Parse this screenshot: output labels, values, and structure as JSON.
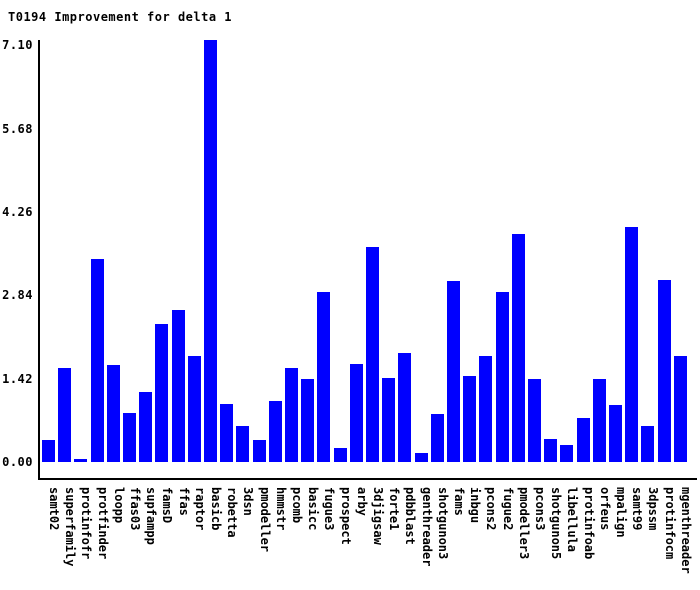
{
  "title": "T0194 Improvement for delta 1",
  "chart_data": {
    "type": "bar",
    "title": "T0194 Improvement for delta 1",
    "xlabel": "",
    "ylabel": "",
    "ylim": [
      0,
      7.1
    ],
    "ytick_labels": [
      "0.00",
      "1.42",
      "2.84",
      "4.26",
      "5.68",
      "7.10"
    ],
    "ytick_values": [
      0.0,
      1.42,
      2.84,
      4.26,
      5.68,
      7.1
    ],
    "grid": "off",
    "legend": "none",
    "x_label_rotation": 90,
    "bar_color": "#0000ff",
    "axis_color": "#000000",
    "categories": [
      "samt02",
      "superfamily",
      "protinfofr",
      "protfinder",
      "loopp",
      "ffas03",
      "supfampp",
      "famsD",
      "ffas",
      "raptor",
      "basicb",
      "robetta",
      "3dsn",
      "pmodeller",
      "hmmstr",
      "pcomb",
      "basicc",
      "fugue3",
      "prospect",
      "arby",
      "3djigsaw",
      "forte1",
      "pdbblast",
      "genthreader",
      "shotgunon3",
      "fams",
      "inbgu",
      "pcons2",
      "fugue2",
      "pmodeller3",
      "pcons3",
      "shotgunon5",
      "libellula",
      "protinfoab",
      "orfeus",
      "mpalign",
      "samt99",
      "3dpssm",
      "protinfocm",
      "mgenthreader"
    ],
    "values": [
      0.37,
      1.6,
      0.05,
      3.46,
      1.65,
      0.83,
      1.19,
      2.35,
      2.59,
      1.81,
      7.19,
      0.99,
      0.61,
      0.37,
      1.04,
      1.6,
      1.41,
      2.9,
      0.24,
      1.67,
      3.66,
      1.43,
      1.86,
      0.15,
      0.82,
      3.08,
      1.47,
      1.81,
      2.9,
      3.88,
      1.41,
      0.39,
      0.29,
      0.75,
      1.41,
      0.97,
      4.0,
      0.61,
      3.1,
      1.81
    ]
  }
}
